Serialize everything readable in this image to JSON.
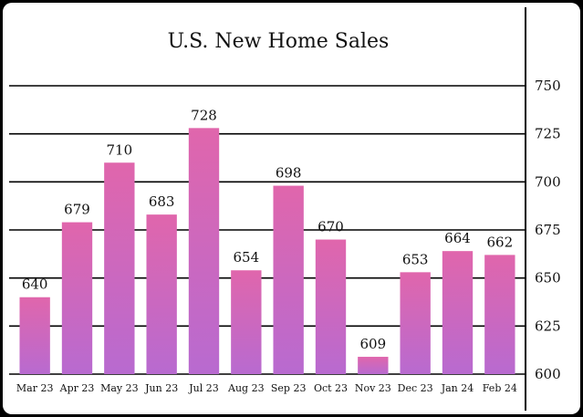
{
  "chart_data": {
    "type": "bar",
    "title": "U.S. New Home Sales",
    "xlabel": "",
    "ylabel": "",
    "categories": [
      "Mar 23",
      "Apr 23",
      "May 23",
      "Jun 23",
      "Jul 23",
      "Aug 23",
      "Sep 23",
      "Oct 23",
      "Nov 23",
      "Dec 23",
      "Jan 24",
      "Feb 24"
    ],
    "values": [
      640,
      679,
      710,
      683,
      728,
      654,
      698,
      670,
      609,
      653,
      664,
      662
    ],
    "ylim": [
      600,
      750
    ],
    "yticks": [
      600,
      625,
      650,
      675,
      700,
      725,
      750
    ],
    "y_axis_side": "right",
    "grid": true,
    "colors": {
      "bar_top": "#e066ac",
      "bar_bottom": "#b86ad0",
      "background": "#ffffff",
      "frame": "#000000"
    }
  }
}
